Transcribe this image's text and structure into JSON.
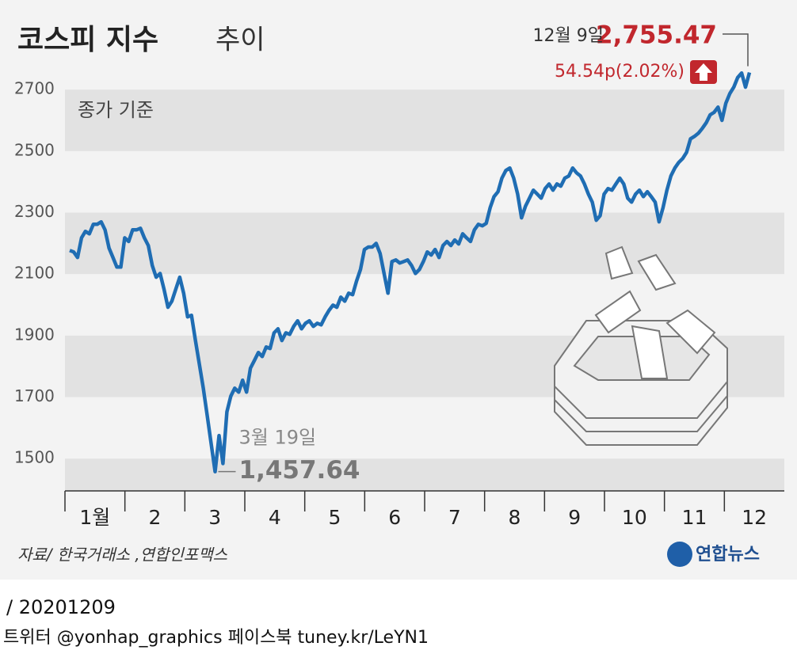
{
  "chart_data": {
    "type": "line",
    "title": "코스피 지수",
    "title_suffix": "추이",
    "subtitle": "종가 기준",
    "months": [
      "1월",
      "2",
      "3",
      "4",
      "5",
      "6",
      "7",
      "8",
      "9",
      "10",
      "11",
      "12"
    ],
    "series": [
      {
        "name": "코스피",
        "color": "#1f6db3",
        "values": [
          2177,
          2172,
          2154,
          2218,
          2239,
          2231,
          2262,
          2262,
          2270,
          2244,
          2185,
          2154,
          2123,
          2123,
          2218,
          2206,
          2244,
          2244,
          2249,
          2218,
          2193,
          2128,
          2090,
          2102,
          2051,
          1992,
          2012,
          2051,
          2090,
          2038,
          1961,
          1966,
          1884,
          1806,
          1729,
          1639,
          1549,
          1457.64,
          1575,
          1484,
          1652,
          1703,
          1729,
          1716,
          1755,
          1716,
          1794,
          1819,
          1845,
          1832,
          1863,
          1858,
          1909,
          1922,
          1884,
          1909,
          1904,
          1930,
          1948,
          1922,
          1940,
          1948,
          1930,
          1940,
          1935,
          1961,
          1982,
          1999,
          1992,
          2025,
          2012,
          2038,
          2033,
          2077,
          2115,
          2180,
          2188,
          2188,
          2200,
          2167,
          2102,
          2038,
          2141,
          2146,
          2136,
          2141,
          2146,
          2128,
          2102,
          2115,
          2141,
          2172,
          2162,
          2180,
          2154,
          2193,
          2206,
          2193,
          2211,
          2198,
          2231,
          2218,
          2206,
          2244,
          2262,
          2257,
          2265,
          2316,
          2352,
          2368,
          2412,
          2437,
          2445,
          2412,
          2360,
          2283,
          2321,
          2347,
          2373,
          2360,
          2347,
          2378,
          2393,
          2373,
          2393,
          2386,
          2412,
          2419,
          2445,
          2429,
          2419,
          2393,
          2360,
          2334,
          2275,
          2290,
          2360,
          2378,
          2373,
          2393,
          2412,
          2393,
          2347,
          2334,
          2360,
          2373,
          2352,
          2368,
          2352,
          2334,
          2270,
          2316,
          2373,
          2419,
          2445,
          2463,
          2476,
          2496,
          2540,
          2548,
          2558,
          2574,
          2592,
          2618,
          2626,
          2643,
          2600,
          2656,
          2687,
          2708,
          2739,
          2754,
          2708,
          2755.47
        ]
      }
    ],
    "ylim": [
      1395,
      2770
    ],
    "yticks": [
      1500,
      1700,
      1900,
      2100,
      2300,
      2500,
      2700
    ],
    "annotations": {
      "min_date": "3월 19일",
      "min_value": "1,457.64",
      "last_date": "12월 9일",
      "last_value": "2,755.47",
      "last_change": "54.54p(2.02%)"
    },
    "source": "자료/ 한국거래소 ,연합인포맥스",
    "logo": "연합뉴스"
  },
  "footer": {
    "date": "/ 20201209",
    "credit": "트위터 @yonhap_graphics  페이스북 tuney.kr/LeYN1"
  }
}
